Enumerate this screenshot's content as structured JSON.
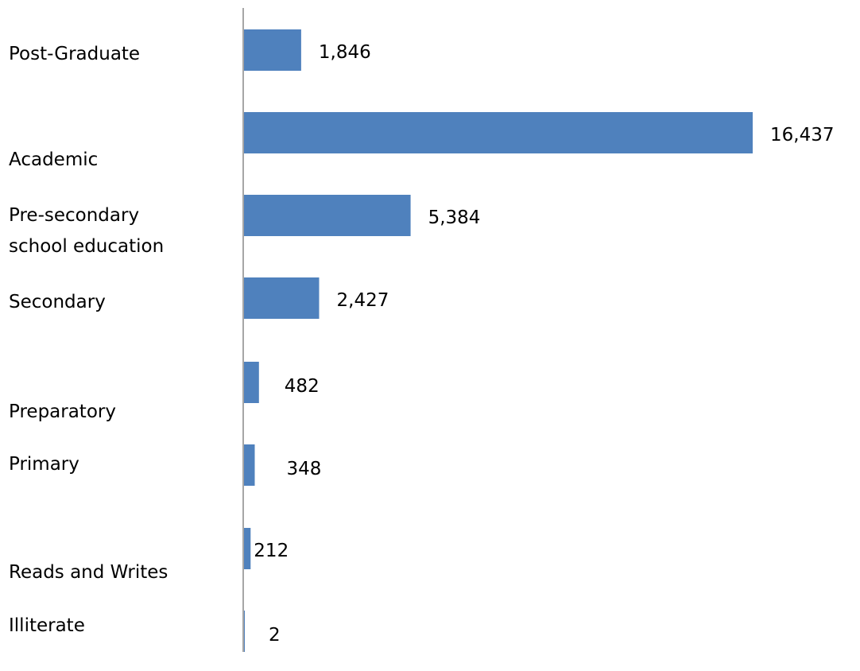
{
  "chart_data": {
    "type": "bar",
    "orientation": "horizontal",
    "categories": [
      "Post-Graduate",
      "Academic",
      "Pre-secondary school education",
      "Secondary",
      "Preparatory",
      "Primary",
      "Reads and Writes",
      "Illiterate"
    ],
    "value_labels": [
      "1,846",
      "16,437",
      "5,384",
      "2,427",
      "482",
      "348",
      "212",
      "2"
    ],
    "values": [
      1846,
      16437,
      5384,
      2427,
      482,
      348,
      212,
      2
    ],
    "bar_color": "#4F81BD",
    "axis_color": "#A6A6A6",
    "xlim": [
      0,
      17000
    ],
    "title": "",
    "xlabel": "",
    "ylabel": "",
    "grid": false,
    "legend": "none"
  }
}
